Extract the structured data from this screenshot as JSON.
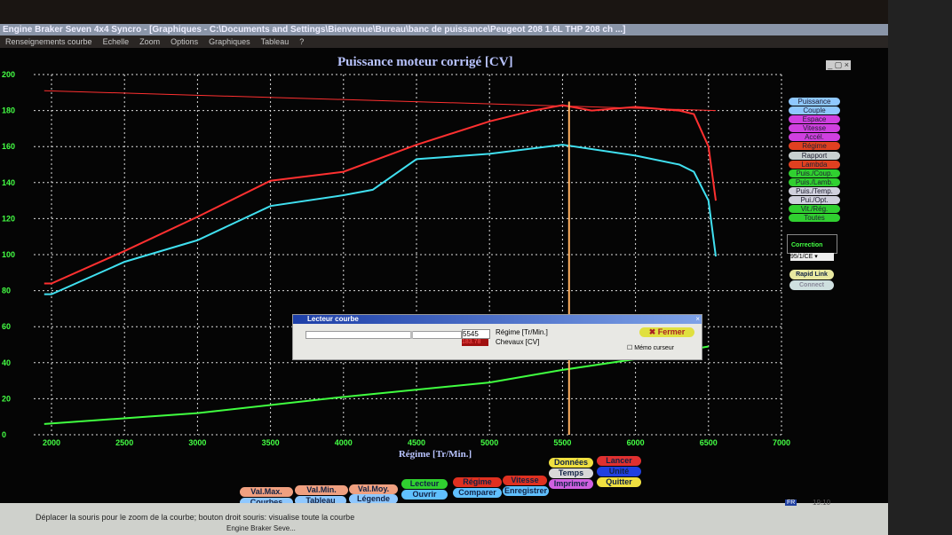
{
  "window": {
    "title": "Engine Braker Seven 4x4 Syncro - [Graphiques - C:\\Documents and Settings\\Bienvenue\\Bureau\\banc de puissance\\Peugeot 208 1.6L THP 208 ch ...]",
    "controls": "_ ▢ ×"
  },
  "menu": [
    "Renseignements courbe",
    "Echelle",
    "Zoom",
    "Options",
    "Graphiques",
    "Tableau",
    "?"
  ],
  "chart_data": {
    "type": "line",
    "title": "Puissance moteur corrigé [CV]",
    "xlabel": "Régime [Tr/Min.]",
    "ylabel": "",
    "xlim": [
      2000,
      7000
    ],
    "ylim": [
      0,
      200
    ],
    "xticks": [
      2000,
      2500,
      3000,
      3500,
      4000,
      4500,
      5000,
      5500,
      6000,
      6500,
      7000
    ],
    "yticks": [
      0,
      20,
      40,
      60,
      80,
      100,
      120,
      140,
      160,
      180,
      200
    ],
    "grid": true,
    "cursor_x": 5545,
    "series": [
      {
        "color": "#ff3030",
        "x": [
          1950,
          2000,
          2500,
          3000,
          3500,
          4000,
          4500,
          5000,
          5300,
          5500,
          5700,
          6000,
          6300,
          6400,
          6500,
          6550
        ],
        "y": [
          84,
          84,
          102,
          121,
          141,
          146,
          161,
          174,
          180,
          183,
          180,
          182,
          180,
          178,
          160,
          130
        ]
      },
      {
        "color": "#40e0f0",
        "x": [
          1950,
          2000,
          2500,
          3000,
          3500,
          4000,
          4200,
          4500,
          5000,
          5500,
          6000,
          6300,
          6400,
          6500,
          6550
        ],
        "y": [
          78,
          78,
          96,
          108,
          127,
          133,
          136,
          153,
          156,
          161,
          155,
          150,
          146,
          130,
          99
        ]
      },
      {
        "color": "#40ff40",
        "x": [
          1950,
          3000,
          4000,
          5000,
          5500,
          6000,
          6500
        ],
        "y": [
          6,
          12,
          21,
          29,
          36,
          42,
          49
        ]
      },
      {
        "color": "#ff3030",
        "x": [
          1950,
          6550
        ],
        "y": [
          191,
          180
        ]
      }
    ]
  },
  "legend": [
    {
      "label": "Puissance",
      "color": "#8fc8ff"
    },
    {
      "label": "Couple",
      "color": "#8fc8ff"
    },
    {
      "label": "Espace",
      "color": "#d040e0"
    },
    {
      "label": "Vitesse",
      "color": "#d040e0"
    },
    {
      "label": "Accél.",
      "color": "#d040e0"
    },
    {
      "label": "Régime",
      "color": "#e04020"
    },
    {
      "label": "Rapport",
      "color": "#c8d0d0"
    },
    {
      "label": "Lambda",
      "color": "#e04020"
    },
    {
      "label": "Puis./Coup.",
      "color": "#30d030"
    },
    {
      "label": "Puis./Lamb.",
      "color": "#30d030"
    },
    {
      "label": "Puis./Temp.",
      "color": "#d0d0dd"
    },
    {
      "label": "Pui./Opt.",
      "color": "#d0d0dd"
    },
    {
      "label": "Vit./Rég.",
      "color": "#30d030"
    },
    {
      "label": "Toutes",
      "color": "#30d030"
    }
  ],
  "correction": {
    "label": "Correction",
    "value": "95/1/CE"
  },
  "side_buttons": {
    "rapid_link": "Rapid Link",
    "connect": "Connect"
  },
  "dialog": {
    "title": "Lecteur courbe",
    "regime_value": "5545",
    "regime_label": "Régime [Tr/Min.]",
    "chevaux_value": "183.78",
    "chevaux_label": "Chevaux [CV]",
    "close": "Fermer",
    "memo": "Mémo curseur",
    "memo_checked": false
  },
  "buttons": [
    {
      "label": "Val.Max.",
      "color": "#f0a080"
    },
    {
      "label": "Val.Min.",
      "color": "#f0a080"
    },
    {
      "label": "Val.Moy.",
      "color": "#f0a080"
    },
    {
      "label": "Lecteur",
      "color": "#30d030"
    },
    {
      "label": "Régime",
      "color": "#e03020"
    },
    {
      "label": "Vitesse",
      "color": "#e03020"
    },
    {
      "label": "Données",
      "color": "#f0e040"
    },
    {
      "label": "Lancer",
      "color": "#e03030"
    },
    {
      "label": "Courbes",
      "color": "#8fc8ff"
    },
    {
      "label": "Tableau",
      "color": "#8fc8ff"
    },
    {
      "label": "Légende",
      "color": "#8fc8ff"
    },
    {
      "label": "Ouvrir",
      "color": "#60c0ff"
    },
    {
      "label": "Comparer",
      "color": "#60c0ff"
    },
    {
      "label": "Enregistrer",
      "color": "#60c0ff"
    },
    {
      "label": "Temps",
      "color": "#d8d8d8"
    },
    {
      "label": "Unité",
      "color": "#2040e0"
    },
    {
      "label": "Imprimer",
      "color": "#d060e0"
    },
    {
      "label": "Quitter",
      "color": "#f0e040"
    }
  ],
  "status": {
    "hint": "Déplacer la souris pour le zoom de la courbe; bouton droit souris: visualise toute la courbe",
    "taskbar_item": "Engine Braker Seve...",
    "lang": "FR",
    "clock": "19:10"
  }
}
